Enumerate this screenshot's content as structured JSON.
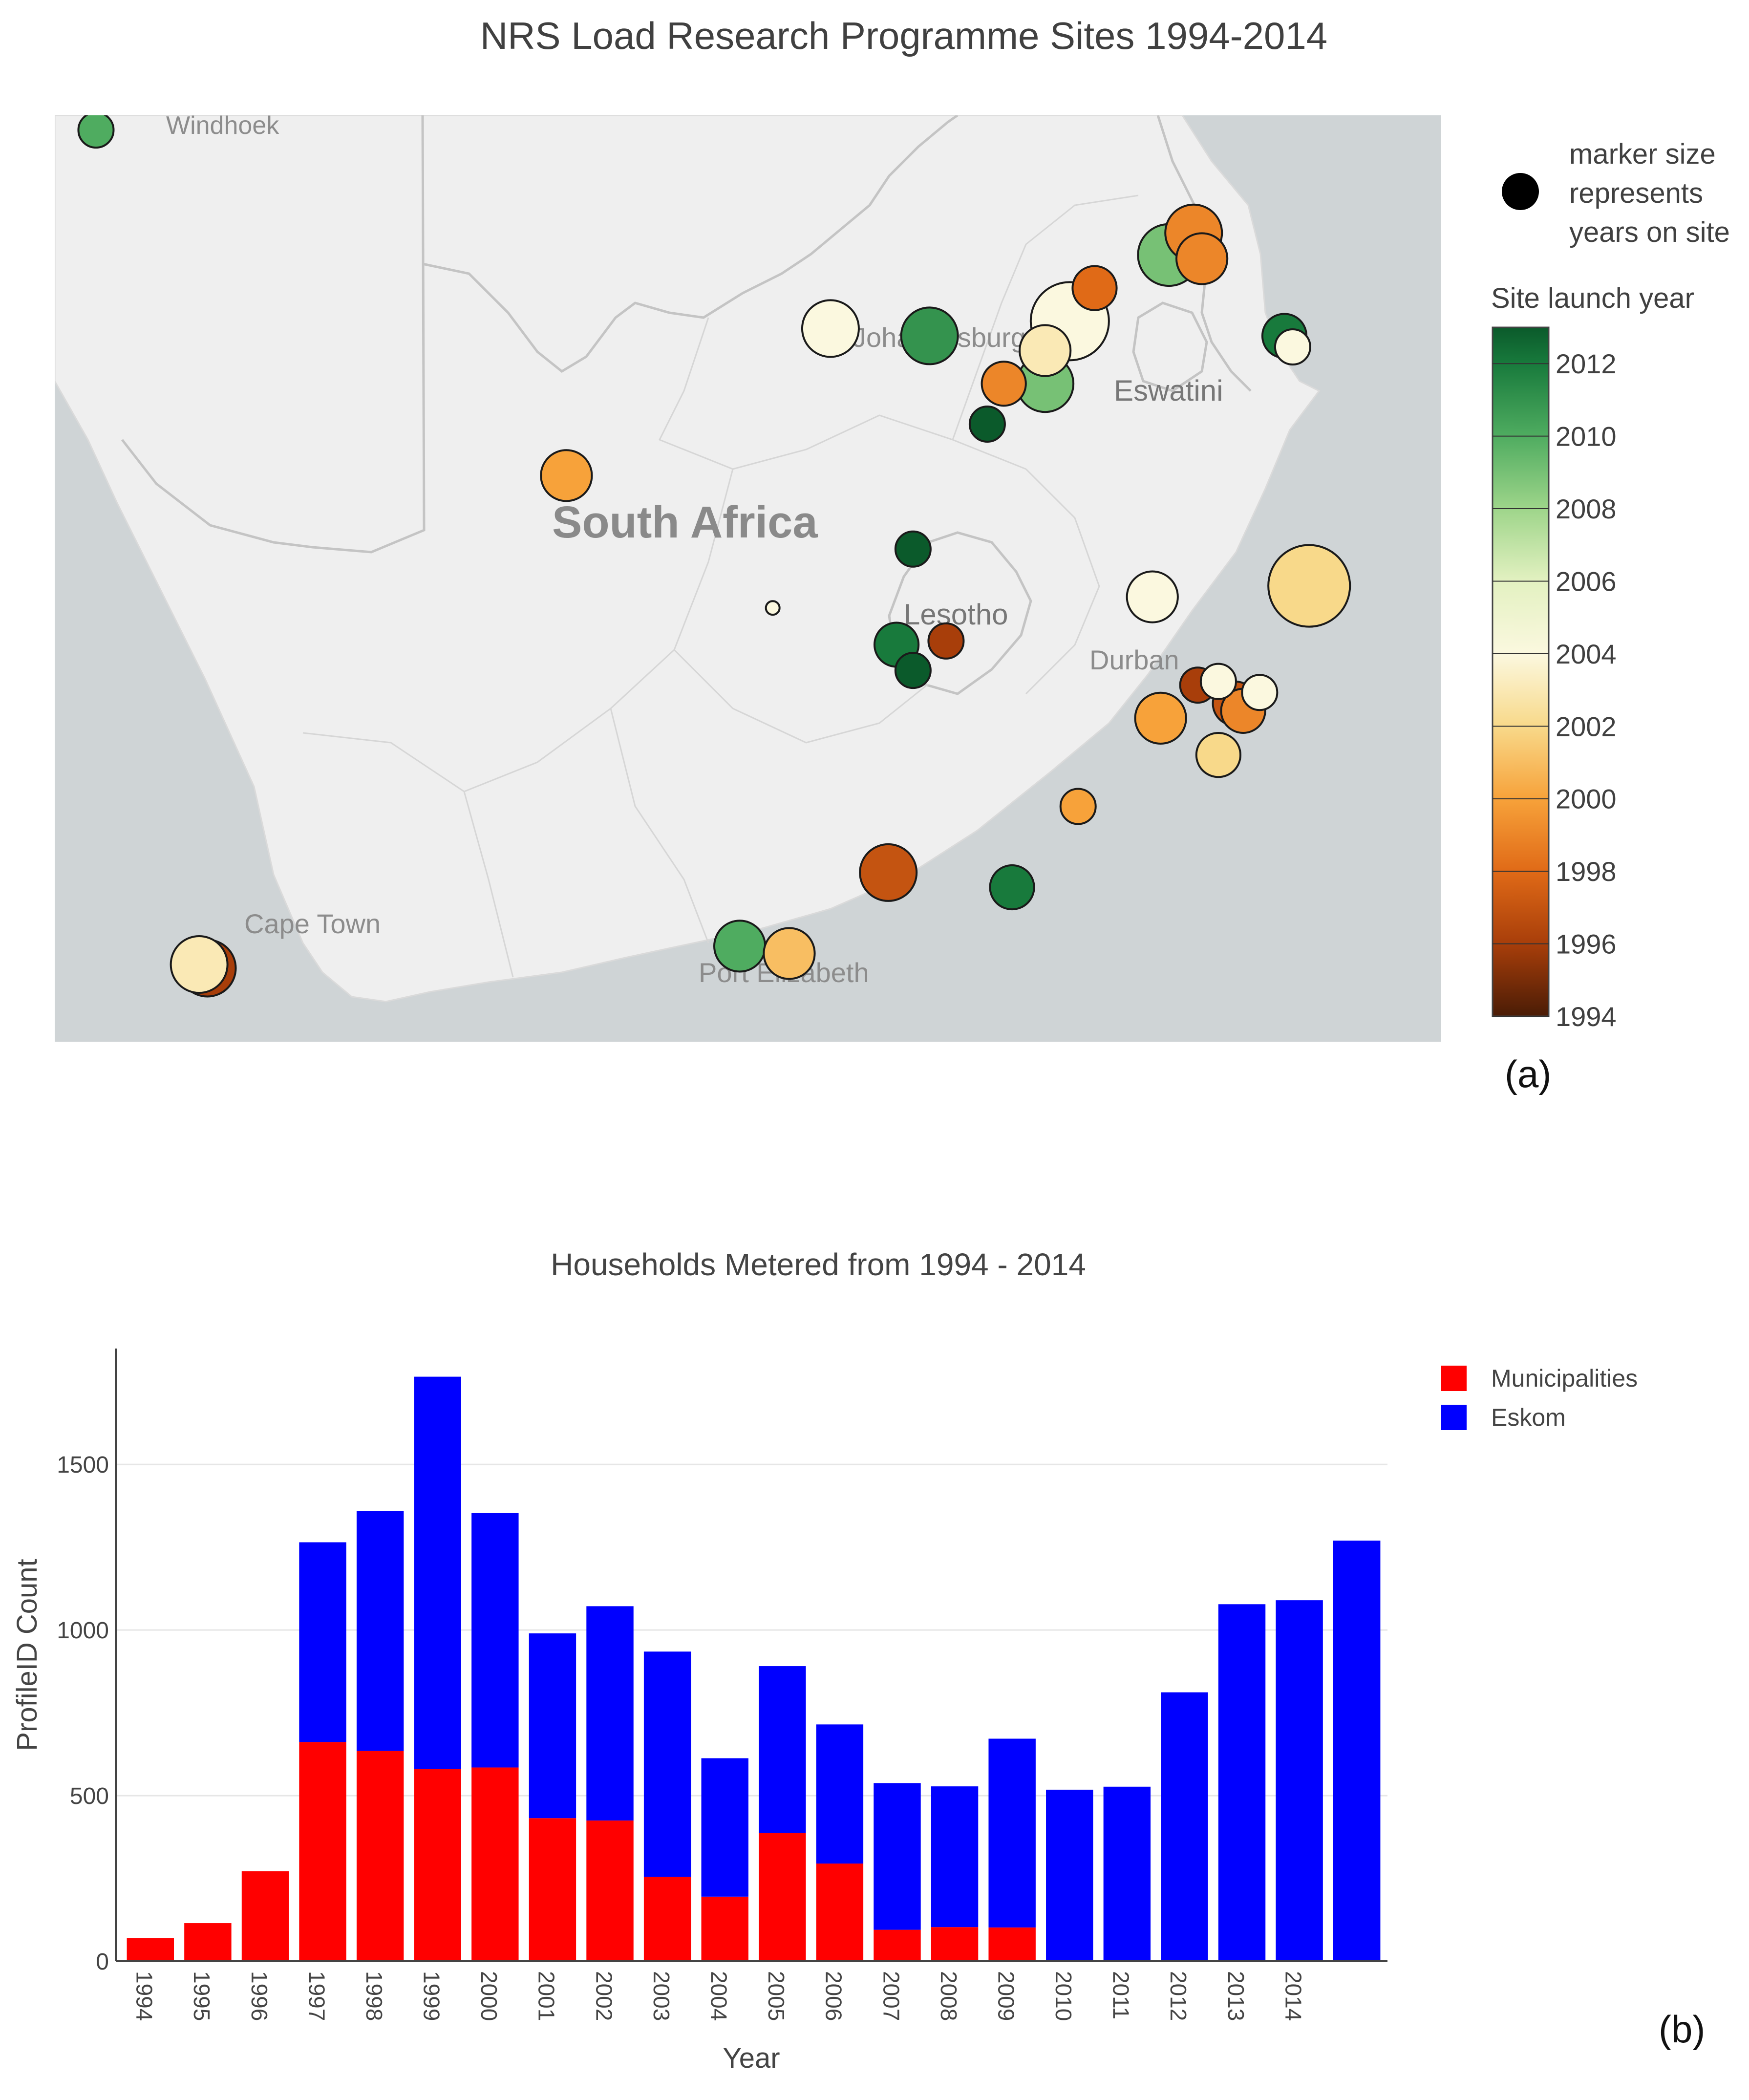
{
  "panel_a": {
    "title": "NRS Load Research Programme Sites 1994-2014",
    "panel_label": "(a)",
    "map_labels": {
      "windhoek": "Windhoek",
      "johannesburg": "Johannesburg",
      "eswatini": "Eswatini",
      "south_africa": "South Africa",
      "lesotho": "Lesotho",
      "durban": "Durban",
      "cape_town": "Cape Town",
      "port_elizabeth": "Port Elizabeth"
    },
    "size_legend": {
      "line1": "marker size",
      "line2": "represents",
      "line3": "years on site"
    },
    "colorbar": {
      "title": "Site launch year",
      "ticks": [
        "2012",
        "2010",
        "2008",
        "2006",
        "2004",
        "2002",
        "2000",
        "1998",
        "1996",
        "1994"
      ]
    },
    "colors": {
      "land": "#efefef",
      "water": "#cfd4d6",
      "border": "#bdbdbd",
      "marker_stroke": "#1a1a1a"
    }
  },
  "chart_data": [
    {
      "type": "scatter",
      "title": "NRS Load Research Programme Sites 1994-2014",
      "color_scale": {
        "label": "Site launch year",
        "range": [
          1994,
          2013
        ],
        "stops": [
          [
            1994,
            "#4a1c06"
          ],
          [
            1996,
            "#a83e0a"
          ],
          [
            1998,
            "#e06a17"
          ],
          [
            2000,
            "#f7a23a"
          ],
          [
            2002,
            "#f8d98a"
          ],
          [
            2004,
            "#fbf8df"
          ],
          [
            2006,
            "#e3f1c1"
          ],
          [
            2008,
            "#9ed58a"
          ],
          [
            2010,
            "#4fac60"
          ],
          [
            2012,
            "#187a3c"
          ],
          [
            2013,
            "#0b5a2b"
          ]
        ]
      },
      "size_meaning": "years on site",
      "sites": [
        {
          "lon": 17.1,
          "lat": -22.6,
          "year": 2010,
          "years_on_site": 1
        },
        {
          "lon": 30.4,
          "lat": -24.0,
          "year": 1999,
          "years_on_site": 4
        },
        {
          "lon": 30.1,
          "lat": -24.3,
          "year": 2009,
          "years_on_site": 5
        },
        {
          "lon": 30.5,
          "lat": -24.35,
          "year": 1999,
          "years_on_site": 3
        },
        {
          "lon": 29.2,
          "lat": -24.75,
          "year": 1998,
          "years_on_site": 2
        },
        {
          "lon": 28.9,
          "lat": -25.2,
          "year": 2004,
          "years_on_site": 9
        },
        {
          "lon": 26.0,
          "lat": -25.3,
          "year": 2004,
          "years_on_site": 4
        },
        {
          "lon": 27.2,
          "lat": -25.4,
          "year": 2011,
          "years_on_site": 4
        },
        {
          "lon": 28.6,
          "lat": -25.6,
          "year": 2003,
          "years_on_site": 3
        },
        {
          "lon": 28.1,
          "lat": -26.05,
          "year": 1999,
          "years_on_site": 2
        },
        {
          "lon": 28.6,
          "lat": -26.05,
          "year": 2009,
          "years_on_site": 4
        },
        {
          "lon": 27.9,
          "lat": -26.6,
          "year": 2013,
          "years_on_site": 1
        },
        {
          "lon": 31.5,
          "lat": -25.4,
          "year": 2012,
          "years_on_site": 2
        },
        {
          "lon": 31.6,
          "lat": -25.55,
          "year": 2004,
          "years_on_site": 1
        },
        {
          "lon": 22.8,
          "lat": -27.3,
          "year": 2000,
          "years_on_site": 3
        },
        {
          "lon": 27.0,
          "lat": -28.3,
          "year": 2013,
          "years_on_site": 1
        },
        {
          "lon": 25.3,
          "lat": -29.1,
          "year": 2004,
          "years_on_site": 0
        },
        {
          "lon": 26.8,
          "lat": -29.6,
          "year": 2012,
          "years_on_site": 2
        },
        {
          "lon": 27.4,
          "lat": -29.55,
          "year": 1996,
          "years_on_site": 1
        },
        {
          "lon": 27.0,
          "lat": -29.95,
          "year": 2013,
          "years_on_site": 1
        },
        {
          "lon": 29.9,
          "lat": -28.95,
          "year": 2004,
          "years_on_site": 3
        },
        {
          "lon": 31.8,
          "lat": -28.8,
          "year": 2002,
          "years_on_site": 10
        },
        {
          "lon": 30.45,
          "lat": -30.15,
          "year": 1996,
          "years_on_site": 1
        },
        {
          "lon": 30.7,
          "lat": -30.1,
          "year": 2004,
          "years_on_site": 1
        },
        {
          "lon": 31.2,
          "lat": -30.25,
          "year": 2004,
          "years_on_site": 1
        },
        {
          "lon": 30.9,
          "lat": -30.4,
          "year": 1997,
          "years_on_site": 2
        },
        {
          "lon": 31.0,
          "lat": -30.5,
          "year": 1999,
          "years_on_site": 2
        },
        {
          "lon": 30.0,
          "lat": -30.6,
          "year": 2000,
          "years_on_site": 3
        },
        {
          "lon": 30.7,
          "lat": -31.1,
          "year": 2002,
          "years_on_site": 2
        },
        {
          "lon": 29.0,
          "lat": -31.8,
          "year": 2000,
          "years_on_site": 1
        },
        {
          "lon": 26.7,
          "lat": -32.7,
          "year": 1997,
          "years_on_site": 4
        },
        {
          "lon": 28.2,
          "lat": -32.9,
          "year": 2012,
          "years_on_site": 2
        },
        {
          "lon": 18.45,
          "lat": -34.0,
          "year": 1996,
          "years_on_site": 4
        },
        {
          "lon": 18.35,
          "lat": -33.95,
          "year": 2003,
          "years_on_site": 4
        },
        {
          "lon": 24.9,
          "lat": -33.7,
          "year": 2010,
          "years_on_site": 3
        },
        {
          "lon": 25.5,
          "lat": -33.8,
          "year": 2001,
          "years_on_site": 3
        }
      ]
    },
    {
      "type": "bar",
      "stacked": true,
      "title": "Households Metered from 1994 - 2014",
      "panel_label": "(b)",
      "xlabel": "Year",
      "ylabel": "ProfileID Count",
      "ylim": [
        0,
        1850
      ],
      "yticks": [
        0,
        500,
        1000,
        1500
      ],
      "grid": true,
      "legend_position": "top-right",
      "categories": [
        "1994",
        "1995",
        "1996",
        "1997",
        "1998",
        "1999",
        "2000",
        "2001",
        "2002",
        "2003",
        "2004",
        "2005",
        "2006",
        "2007",
        "2008",
        "2009",
        "2010",
        "2011",
        "2012",
        "2013",
        "2014",
        ""
      ],
      "series": [
        {
          "name": "Municipalities",
          "color": "#ff0000",
          "values": [
            70,
            115,
            272,
            662,
            635,
            580,
            585,
            432,
            425,
            255,
            195,
            388,
            295,
            95,
            103,
            102,
            0,
            0,
            0,
            0,
            0,
            0
          ]
        },
        {
          "name": "Eskom",
          "color": "#0000ff",
          "values": [
            0,
            0,
            0,
            603,
            725,
            1185,
            768,
            558,
            647,
            680,
            418,
            503,
            420,
            443,
            425,
            570,
            518,
            527,
            812,
            1078,
            1090,
            1270
          ]
        }
      ]
    }
  ]
}
